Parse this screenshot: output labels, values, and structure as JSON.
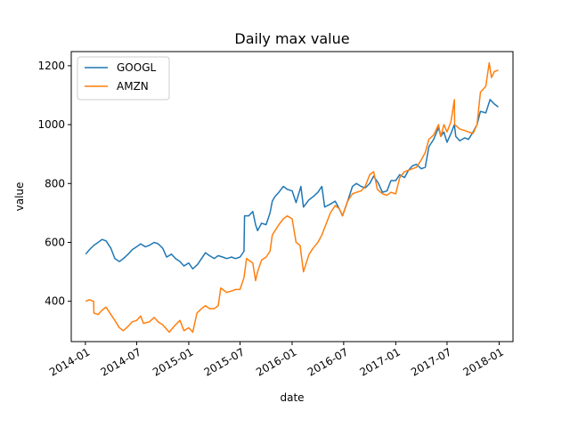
{
  "chart_data": {
    "type": "line",
    "title": "Daily max value",
    "xlabel": "date",
    "ylabel": "value",
    "xlim": [
      "2013-11-12",
      "2018-02-19"
    ],
    "ylim": [
      263,
      1248
    ],
    "x_ticks": [
      "2014-01",
      "2014-07",
      "2015-01",
      "2015-07",
      "2016-01",
      "2016-07",
      "2017-01",
      "2017-07",
      "2018-01"
    ],
    "y_ticks": [
      400,
      600,
      800,
      1000,
      1200
    ],
    "grid": false,
    "legend_position": "top-left",
    "series": [
      {
        "name": "GOOGL",
        "color": "#1f77b4",
        "points": [
          [
            "2014-01-02",
            560
          ],
          [
            "2014-01-15",
            575
          ],
          [
            "2014-01-31",
            590
          ],
          [
            "2014-02-15",
            600
          ],
          [
            "2014-03-01",
            610
          ],
          [
            "2014-03-15",
            605
          ],
          [
            "2014-04-01",
            580
          ],
          [
            "2014-04-15",
            545
          ],
          [
            "2014-05-01",
            535
          ],
          [
            "2014-05-15",
            545
          ],
          [
            "2014-06-01",
            560
          ],
          [
            "2014-06-15",
            575
          ],
          [
            "2014-07-01",
            585
          ],
          [
            "2014-07-15",
            595
          ],
          [
            "2014-08-01",
            585
          ],
          [
            "2014-08-15",
            590
          ],
          [
            "2014-09-01",
            600
          ],
          [
            "2014-09-15",
            595
          ],
          [
            "2014-10-01",
            580
          ],
          [
            "2014-10-15",
            550
          ],
          [
            "2014-11-01",
            560
          ],
          [
            "2014-11-15",
            545
          ],
          [
            "2014-12-01",
            535
          ],
          [
            "2014-12-15",
            520
          ],
          [
            "2015-01-01",
            530
          ],
          [
            "2015-01-15",
            510
          ],
          [
            "2015-02-01",
            525
          ],
          [
            "2015-02-15",
            545
          ],
          [
            "2015-03-01",
            565
          ],
          [
            "2015-03-15",
            555
          ],
          [
            "2015-04-01",
            545
          ],
          [
            "2015-04-15",
            555
          ],
          [
            "2015-05-01",
            550
          ],
          [
            "2015-05-15",
            545
          ],
          [
            "2015-06-01",
            550
          ],
          [
            "2015-06-15",
            545
          ],
          [
            "2015-07-01",
            550
          ],
          [
            "2015-07-15",
            570
          ],
          [
            "2015-07-17",
            690
          ],
          [
            "2015-08-01",
            690
          ],
          [
            "2015-08-15",
            705
          ],
          [
            "2015-08-25",
            660
          ],
          [
            "2015-09-01",
            640
          ],
          [
            "2015-09-15",
            665
          ],
          [
            "2015-10-01",
            660
          ],
          [
            "2015-10-15",
            700
          ],
          [
            "2015-10-23",
            740
          ],
          [
            "2015-11-01",
            755
          ],
          [
            "2015-11-15",
            770
          ],
          [
            "2015-12-01",
            790
          ],
          [
            "2015-12-15",
            780
          ],
          [
            "2016-01-01",
            775
          ],
          [
            "2016-01-15",
            735
          ],
          [
            "2016-02-01",
            790
          ],
          [
            "2016-02-10",
            720
          ],
          [
            "2016-03-01",
            745
          ],
          [
            "2016-03-15",
            755
          ],
          [
            "2016-04-01",
            770
          ],
          [
            "2016-04-15",
            790
          ],
          [
            "2016-04-25",
            720
          ],
          [
            "2016-05-15",
            730
          ],
          [
            "2016-06-01",
            740
          ],
          [
            "2016-06-15",
            715
          ],
          [
            "2016-06-27",
            690
          ],
          [
            "2016-07-15",
            740
          ],
          [
            "2016-08-01",
            790
          ],
          [
            "2016-08-15",
            800
          ],
          [
            "2016-09-01",
            790
          ],
          [
            "2016-09-15",
            785
          ],
          [
            "2016-10-01",
            800
          ],
          [
            "2016-10-15",
            825
          ],
          [
            "2016-11-01",
            800
          ],
          [
            "2016-11-15",
            770
          ],
          [
            "2016-12-01",
            775
          ],
          [
            "2016-12-15",
            810
          ],
          [
            "2017-01-01",
            810
          ],
          [
            "2017-01-15",
            830
          ],
          [
            "2017-02-01",
            820
          ],
          [
            "2017-02-15",
            845
          ],
          [
            "2017-03-01",
            860
          ],
          [
            "2017-03-15",
            865
          ],
          [
            "2017-04-01",
            850
          ],
          [
            "2017-04-15",
            855
          ],
          [
            "2017-04-28",
            925
          ],
          [
            "2017-05-15",
            950
          ],
          [
            "2017-06-01",
            990
          ],
          [
            "2017-06-09",
            960
          ],
          [
            "2017-06-20",
            975
          ],
          [
            "2017-07-01",
            940
          ],
          [
            "2017-07-15",
            970
          ],
          [
            "2017-07-27",
            1000
          ],
          [
            "2017-08-01",
            960
          ],
          [
            "2017-08-15",
            945
          ],
          [
            "2017-09-01",
            955
          ],
          [
            "2017-09-15",
            950
          ],
          [
            "2017-10-01",
            975
          ],
          [
            "2017-10-15",
            1000
          ],
          [
            "2017-10-27",
            1045
          ],
          [
            "2017-11-15",
            1040
          ],
          [
            "2017-11-30",
            1085
          ],
          [
            "2017-12-15",
            1070
          ],
          [
            "2017-12-29",
            1060
          ]
        ]
      },
      {
        "name": "AMZN",
        "color": "#ff7f0e",
        "points": [
          [
            "2014-01-02",
            400
          ],
          [
            "2014-01-15",
            405
          ],
          [
            "2014-01-30",
            400
          ],
          [
            "2014-01-31",
            360
          ],
          [
            "2014-02-15",
            355
          ],
          [
            "2014-03-01",
            370
          ],
          [
            "2014-03-15",
            380
          ],
          [
            "2014-04-01",
            355
          ],
          [
            "2014-04-15",
            335
          ],
          [
            "2014-05-01",
            310
          ],
          [
            "2014-05-15",
            300
          ],
          [
            "2014-06-01",
            315
          ],
          [
            "2014-06-15",
            330
          ],
          [
            "2014-07-01",
            335
          ],
          [
            "2014-07-15",
            350
          ],
          [
            "2014-07-25",
            325
          ],
          [
            "2014-08-15",
            330
          ],
          [
            "2014-09-01",
            345
          ],
          [
            "2014-09-15",
            330
          ],
          [
            "2014-10-01",
            320
          ],
          [
            "2014-10-24",
            295
          ],
          [
            "2014-11-15",
            320
          ],
          [
            "2014-12-01",
            335
          ],
          [
            "2014-12-15",
            300
          ],
          [
            "2015-01-01",
            310
          ],
          [
            "2015-01-15",
            295
          ],
          [
            "2015-01-30",
            360
          ],
          [
            "2015-02-15",
            375
          ],
          [
            "2015-03-01",
            385
          ],
          [
            "2015-03-15",
            375
          ],
          [
            "2015-04-01",
            375
          ],
          [
            "2015-04-15",
            385
          ],
          [
            "2015-04-24",
            445
          ],
          [
            "2015-05-15",
            430
          ],
          [
            "2015-06-01",
            435
          ],
          [
            "2015-06-15",
            440
          ],
          [
            "2015-07-01",
            440
          ],
          [
            "2015-07-15",
            480
          ],
          [
            "2015-07-24",
            545
          ],
          [
            "2015-08-15",
            530
          ],
          [
            "2015-08-25",
            470
          ],
          [
            "2015-09-01",
            500
          ],
          [
            "2015-09-15",
            540
          ],
          [
            "2015-10-01",
            550
          ],
          [
            "2015-10-15",
            570
          ],
          [
            "2015-10-23",
            625
          ],
          [
            "2015-11-15",
            660
          ],
          [
            "2015-12-01",
            680
          ],
          [
            "2015-12-15",
            690
          ],
          [
            "2016-01-01",
            680
          ],
          [
            "2016-01-15",
            600
          ],
          [
            "2016-01-29",
            590
          ],
          [
            "2016-02-10",
            500
          ],
          [
            "2016-03-01",
            560
          ],
          [
            "2016-03-15",
            580
          ],
          [
            "2016-04-01",
            600
          ],
          [
            "2016-04-15",
            625
          ],
          [
            "2016-04-29",
            660
          ],
          [
            "2016-05-15",
            700
          ],
          [
            "2016-06-01",
            725
          ],
          [
            "2016-06-15",
            715
          ],
          [
            "2016-06-27",
            690
          ],
          [
            "2016-07-15",
            740
          ],
          [
            "2016-08-01",
            765
          ],
          [
            "2016-08-15",
            770
          ],
          [
            "2016-09-01",
            775
          ],
          [
            "2016-09-15",
            790
          ],
          [
            "2016-10-01",
            830
          ],
          [
            "2016-10-15",
            840
          ],
          [
            "2016-10-28",
            780
          ],
          [
            "2016-11-15",
            765
          ],
          [
            "2016-12-01",
            760
          ],
          [
            "2016-12-15",
            770
          ],
          [
            "2017-01-01",
            765
          ],
          [
            "2017-01-15",
            820
          ],
          [
            "2017-02-01",
            840
          ],
          [
            "2017-02-15",
            845
          ],
          [
            "2017-03-01",
            850
          ],
          [
            "2017-03-15",
            855
          ],
          [
            "2017-04-01",
            880
          ],
          [
            "2017-04-15",
            905
          ],
          [
            "2017-04-28",
            950
          ],
          [
            "2017-05-15",
            965
          ],
          [
            "2017-06-01",
            1000
          ],
          [
            "2017-06-09",
            960
          ],
          [
            "2017-06-20",
            1000
          ],
          [
            "2017-07-01",
            975
          ],
          [
            "2017-07-15",
            1010
          ],
          [
            "2017-07-27",
            1085
          ],
          [
            "2017-07-28",
            1000
          ],
          [
            "2017-08-15",
            985
          ],
          [
            "2017-09-01",
            980
          ],
          [
            "2017-09-15",
            975
          ],
          [
            "2017-10-01",
            970
          ],
          [
            "2017-10-15",
            1000
          ],
          [
            "2017-10-27",
            1110
          ],
          [
            "2017-11-15",
            1130
          ],
          [
            "2017-11-27",
            1210
          ],
          [
            "2017-12-05",
            1160
          ],
          [
            "2017-12-15",
            1180
          ],
          [
            "2017-12-29",
            1185
          ]
        ]
      }
    ]
  }
}
